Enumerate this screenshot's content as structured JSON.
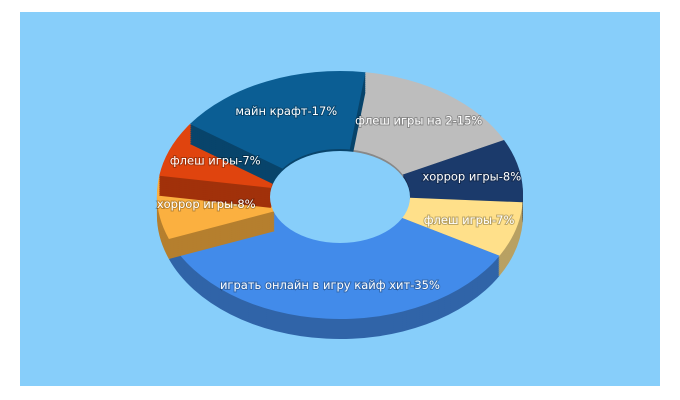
{
  "chart_data": {
    "type": "pie",
    "values": [
      15,
      8,
      7,
      35,
      8,
      7,
      17
    ],
    "value_labels": [
      "флеш игры на 2-15%",
      "хоррор игры-8%",
      "флеш игры-7%",
      "играть онлайн в игру кайф хит-35%",
      "хоррор игры-8%",
      "флеш игры-7%",
      "майн крафт-17%"
    ],
    "colors": [
      "#bdbdbd",
      "#1b3a6b",
      "#ffe08a",
      "#428bea",
      "#fbb040",
      "#e0440e",
      "#0b5e94"
    ],
    "donut": true,
    "3d": true
  }
}
